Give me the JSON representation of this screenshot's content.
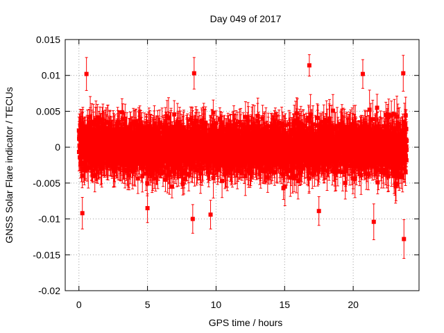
{
  "chart_data": {
    "type": "scatter",
    "title": "Day 049 of 2017",
    "xlabel": "GPS time / hours",
    "ylabel": "GNSS Solar Flare indicator / TECUs",
    "xlim": [
      -1,
      24.8
    ],
    "ylim": [
      -0.02,
      0.015
    ],
    "x_ticks": [
      0,
      5,
      10,
      15,
      20
    ],
    "x_tick_labels": [
      "0",
      "5",
      "10",
      "15",
      "20"
    ],
    "y_ticks": [
      -0.02,
      -0.015,
      -0.01,
      -0.005,
      0,
      0.005,
      0.01,
      0.015
    ],
    "y_tick_labels": [
      "-0.02",
      "-0.015",
      "-0.01",
      "-0.005",
      "0",
      "0.005",
      "0.01",
      "0.015"
    ],
    "grid": true,
    "series_color": "#ff0000",
    "series": [
      {
        "name": "solar flare indicator",
        "x_start": 0.0,
        "x_end": 23.9,
        "n_points": 2868,
        "typical_spread": 0.0025,
        "typical_error": 0.0022,
        "notable_points": [
          {
            "x": 0.25,
            "y": -0.0092,
            "err": 0.0022
          },
          {
            "x": 0.55,
            "y": 0.0102,
            "err": 0.0023
          },
          {
            "x": 5.0,
            "y": -0.0085,
            "err": 0.002
          },
          {
            "x": 8.4,
            "y": 0.0103,
            "err": 0.0022
          },
          {
            "x": 8.3,
            "y": -0.01,
            "err": 0.002
          },
          {
            "x": 9.6,
            "y": -0.0094,
            "err": 0.002
          },
          {
            "x": 16.8,
            "y": 0.0114,
            "err": 0.0015
          },
          {
            "x": 17.5,
            "y": -0.0089,
            "err": 0.002
          },
          {
            "x": 20.7,
            "y": 0.0102,
            "err": 0.002
          },
          {
            "x": 21.5,
            "y": -0.0104,
            "err": 0.0025
          },
          {
            "x": 23.65,
            "y": 0.0103,
            "err": 0.0025
          },
          {
            "x": 23.7,
            "y": -0.0128,
            "err": 0.0027
          }
        ]
      }
    ]
  }
}
